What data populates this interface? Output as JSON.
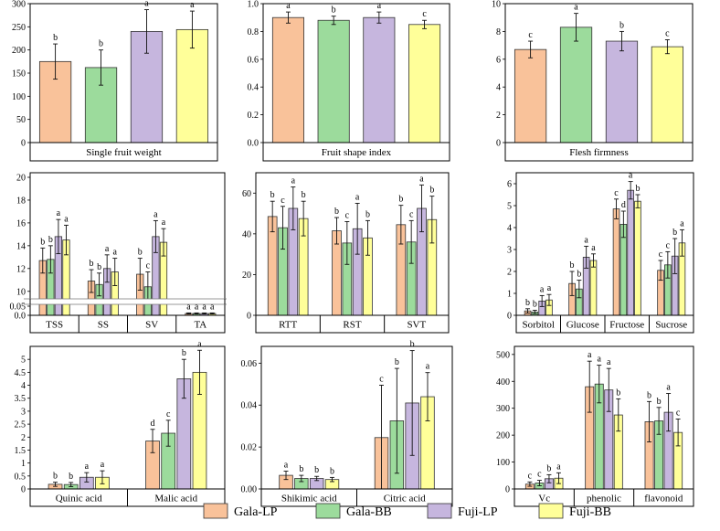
{
  "legend": [
    {
      "name": "Gala-LP",
      "color": "#F9C29A"
    },
    {
      "name": "Gala-BB",
      "color": "#9CDB9C"
    },
    {
      "name": "Fuji-LP",
      "color": "#C6B6DE"
    },
    {
      "name": "Fuji-BB",
      "color": "#FFFF99"
    }
  ],
  "chart_data": [
    {
      "type": "bar",
      "title": "Single fruit weight",
      "ylim": [
        0,
        300
      ],
      "yticks": [
        0,
        50,
        100,
        150,
        200,
        250,
        300
      ],
      "yticklabels": [
        "0",
        "50",
        "100",
        "150",
        "200",
        "250",
        "300"
      ],
      "categories": [
        "Single fruit weight"
      ],
      "category_labels": [
        "Single fruit weight"
      ],
      "series": [
        {
          "name": "Gala-LP",
          "values": [
            175
          ],
          "errors": [
            38
          ],
          "letters": [
            "b"
          ]
        },
        {
          "name": "Gala-BB",
          "values": [
            162
          ],
          "errors": [
            38
          ],
          "letters": [
            "b"
          ]
        },
        {
          "name": "Fuji-LP",
          "values": [
            240
          ],
          "errors": [
            47
          ],
          "letters": [
            "a"
          ]
        },
        {
          "name": "Fuji-BB",
          "values": [
            244
          ],
          "errors": [
            40
          ],
          "letters": [
            "a"
          ]
        }
      ]
    },
    {
      "type": "bar",
      "title": "Fruit shape index",
      "ylim": [
        0,
        1.0
      ],
      "yticks": [
        0,
        0.2,
        0.4,
        0.6,
        0.8,
        1.0
      ],
      "yticklabels": [
        "0.0",
        "0.2",
        "0.4",
        "0.6",
        "0.8",
        "1.0"
      ],
      "categories": [
        "Fruit shape index"
      ],
      "category_labels": [
        "Fruit shape index"
      ],
      "series": [
        {
          "name": "Gala-LP",
          "values": [
            0.9
          ],
          "errors": [
            0.04
          ],
          "letters": [
            "a"
          ]
        },
        {
          "name": "Gala-BB",
          "values": [
            0.88
          ],
          "errors": [
            0.03
          ],
          "letters": [
            "b"
          ]
        },
        {
          "name": "Fuji-LP",
          "values": [
            0.9
          ],
          "errors": [
            0.04
          ],
          "letters": [
            "a"
          ]
        },
        {
          "name": "Fuji-BB",
          "values": [
            0.85
          ],
          "errors": [
            0.03
          ],
          "letters": [
            "c"
          ]
        }
      ]
    },
    {
      "type": "bar",
      "title": "Flesh firmness",
      "ylim": [
        0,
        10
      ],
      "yticks": [
        0,
        2,
        4,
        6,
        8,
        10
      ],
      "yticklabels": [
        "0",
        "2",
        "4",
        "6",
        "8",
        "10"
      ],
      "categories": [
        "Flesh firmness"
      ],
      "category_labels": [
        "Flesh firmness"
      ],
      "series": [
        {
          "name": "Gala-LP",
          "values": [
            6.7
          ],
          "errors": [
            0.6
          ],
          "letters": [
            "c"
          ]
        },
        {
          "name": "Gala-BB",
          "values": [
            8.3
          ],
          "errors": [
            1.0
          ],
          "letters": [
            "a"
          ]
        },
        {
          "name": "Fuji-LP",
          "values": [
            7.3
          ],
          "errors": [
            0.7
          ],
          "letters": [
            "b"
          ]
        },
        {
          "name": "Fuji-BB",
          "values": [
            6.9
          ],
          "errors": [
            0.5
          ],
          "letters": [
            "c"
          ]
        }
      ]
    },
    {
      "type": "bar",
      "title": "",
      "axis_break": {
        "lower_max": 0.05,
        "upper_min": 9.5,
        "upper_max": 20
      },
      "yticks": [
        0,
        0.05,
        10,
        12,
        14,
        16,
        18,
        20
      ],
      "yticklabels": [
        "0.0",
        "0.05",
        "10",
        "12",
        "14",
        "16",
        "18",
        "20"
      ],
      "categories": [
        "TSS",
        "SS",
        "SV",
        "TA"
      ],
      "category_labels": [
        "TSS",
        "SS",
        "SV",
        "TA"
      ],
      "series": [
        {
          "name": "Gala-LP",
          "values": [
            12.7,
            10.9,
            11.5,
            0.01
          ],
          "errors": [
            1.1,
            1.0,
            1.4,
            0.003
          ],
          "letters": [
            "b",
            "b",
            "b",
            "a"
          ]
        },
        {
          "name": "Gala-BB",
          "values": [
            12.8,
            10.6,
            10.4,
            0.01
          ],
          "errors": [
            1.2,
            1.0,
            1.3,
            0.003
          ],
          "letters": [
            "b",
            "b",
            "c",
            "a"
          ]
        },
        {
          "name": "Fuji-LP",
          "values": [
            14.8,
            12.0,
            14.8,
            0.01
          ],
          "errors": [
            1.5,
            1.2,
            1.4,
            0.003
          ],
          "letters": [
            "a",
            "a",
            "a",
            "a"
          ]
        },
        {
          "name": "Fuji-BB",
          "values": [
            14.5,
            11.7,
            14.3,
            0.01
          ],
          "errors": [
            1.3,
            1.2,
            1.2,
            0.003
          ],
          "letters": [
            "a",
            "a",
            "a",
            "a"
          ]
        }
      ]
    },
    {
      "type": "bar",
      "title": "",
      "ylim": [
        0,
        70
      ],
      "yticks": [
        0,
        20,
        40,
        60
      ],
      "yticklabels": [
        "0",
        "20",
        "40",
        "60"
      ],
      "categories": [
        "RTT",
        "RST",
        "SVT"
      ],
      "category_labels": [
        "RTT",
        "RST",
        "SVT"
      ],
      "series": [
        {
          "name": "Gala-LP",
          "values": [
            48.5,
            41.5,
            44.5
          ],
          "errors": [
            7.5,
            6.5,
            9.5
          ],
          "letters": [
            "b",
            "b",
            "b"
          ]
        },
        {
          "name": "Gala-BB",
          "values": [
            43.0,
            35.5,
            36.0
          ],
          "errors": [
            10.5,
            10.5,
            10.5
          ],
          "letters": [
            "c",
            "c",
            "c"
          ]
        },
        {
          "name": "Fuji-LP",
          "values": [
            52.5,
            42.5,
            52.5
          ],
          "errors": [
            10.5,
            12.5,
            11.5
          ],
          "letters": [
            "a",
            "a",
            "a"
          ]
        },
        {
          "name": "Fuji-BB",
          "values": [
            47.5,
            38.0,
            47.0
          ],
          "errors": [
            8.5,
            8.5,
            11.5
          ],
          "letters": [
            "b",
            "b",
            "b"
          ]
        }
      ]
    },
    {
      "type": "bar",
      "title": "",
      "ylim": [
        0,
        6.5
      ],
      "yticks": [
        0,
        1,
        2,
        3,
        4,
        5,
        6
      ],
      "yticklabels": [
        "0",
        "1",
        "2",
        "3",
        "4",
        "5",
        "6"
      ],
      "categories": [
        "Sorbitol",
        "Glucose",
        "Fructose",
        "Sucrose"
      ],
      "category_labels": [
        "Sorbitol",
        "Glucose",
        "Fructose",
        "Sucrose"
      ],
      "series": [
        {
          "name": "Gala-LP",
          "values": [
            0.2,
            1.45,
            4.85,
            2.05
          ],
          "errors": [
            0.1,
            0.55,
            0.45,
            0.45
          ],
          "letters": [
            "b",
            "b",
            "c",
            "c"
          ]
        },
        {
          "name": "Gala-BB",
          "values": [
            0.15,
            1.2,
            4.15,
            2.3
          ],
          "errors": [
            0.08,
            0.4,
            0.6,
            0.6
          ],
          "letters": [
            "b",
            "b",
            "d",
            "c"
          ]
        },
        {
          "name": "Fuji-LP",
          "values": [
            0.65,
            2.65,
            5.7,
            2.7
          ],
          "errors": [
            0.25,
            0.5,
            0.4,
            0.8
          ],
          "letters": [
            "a",
            "a",
            "a",
            "b"
          ]
        },
        {
          "name": "Fuji-BB",
          "values": [
            0.7,
            2.5,
            5.2,
            3.3
          ],
          "errors": [
            0.25,
            0.3,
            0.3,
            0.6
          ],
          "letters": [
            "a",
            "a",
            "b",
            "a"
          ]
        }
      ]
    },
    {
      "type": "bar",
      "title": "",
      "ylim": [
        0,
        5.5
      ],
      "yticks": [
        0,
        0.5,
        1,
        1.5,
        2,
        2.5,
        3,
        3.5,
        4,
        4.5,
        5
      ],
      "yticklabels": [
        "0",
        "0.5",
        "1",
        "1.5",
        "2",
        "2.5",
        "3",
        "3.5",
        "4",
        "4.5",
        "5"
      ],
      "categories": [
        "Quinic acid",
        "Malic acid"
      ],
      "category_labels": [
        "Quinic acid",
        "Malic acid"
      ],
      "series": [
        {
          "name": "Gala-LP",
          "values": [
            0.18,
            1.85
          ],
          "errors": [
            0.08,
            0.45
          ],
          "letters": [
            "b",
            "d"
          ]
        },
        {
          "name": "Gala-BB",
          "values": [
            0.17,
            2.15
          ],
          "errors": [
            0.08,
            0.5
          ],
          "letters": [
            "b",
            "c"
          ]
        },
        {
          "name": "Fuji-LP",
          "values": [
            0.45,
            4.25
          ],
          "errors": [
            0.18,
            0.75
          ],
          "letters": [
            "a",
            "b"
          ]
        },
        {
          "name": "Fuji-BB",
          "values": [
            0.45,
            4.5
          ],
          "errors": [
            0.25,
            0.85
          ],
          "letters": [
            "a",
            "a"
          ]
        }
      ]
    },
    {
      "type": "bar",
      "title": "",
      "ylim": [
        0,
        0.068
      ],
      "yticks": [
        0,
        0.02,
        0.04,
        0.06
      ],
      "yticklabels": [
        "0.00",
        "0.02",
        "0.04",
        "0.06"
      ],
      "categories": [
        "Shikimic acid",
        "Citric acid"
      ],
      "category_labels": [
        "Shikimic acid",
        "Citric acid"
      ],
      "series": [
        {
          "name": "Gala-LP",
          "values": [
            0.0065,
            0.0245
          ],
          "errors": [
            0.002,
            0.025
          ],
          "letters": [
            "a",
            "c"
          ]
        },
        {
          "name": "Gala-BB",
          "values": [
            0.005,
            0.0325
          ],
          "errors": [
            0.0015,
            0.025
          ],
          "letters": [
            "b",
            "b"
          ]
        },
        {
          "name": "Fuji-LP",
          "values": [
            0.005,
            0.041
          ],
          "errors": [
            0.001,
            0.025
          ],
          "letters": [
            "b",
            "b"
          ]
        },
        {
          "name": "Fuji-BB",
          "values": [
            0.0045,
            0.044
          ],
          "errors": [
            0.001,
            0.0115
          ],
          "letters": [
            "b",
            "a"
          ]
        }
      ]
    },
    {
      "type": "bar",
      "title": "",
      "ylim": [
        0,
        530
      ],
      "yticks": [
        0,
        100,
        200,
        300,
        400,
        500
      ],
      "yticklabels": [
        "0",
        "100",
        "200",
        "300",
        "400",
        "500"
      ],
      "categories": [
        "Vc",
        "phenolic",
        "flavonoid"
      ],
      "category_labels": [
        "Vc",
        "phenolic",
        "flavonoid"
      ],
      "series": [
        {
          "name": "Gala-LP",
          "values": [
            18,
            380,
            250
          ],
          "errors": [
            8,
            95,
            75
          ],
          "letters": [
            "c",
            "a",
            "b"
          ]
        },
        {
          "name": "Gala-BB",
          "values": [
            22,
            390,
            253
          ],
          "errors": [
            10,
            70,
            50
          ],
          "letters": [
            "c",
            "a",
            "b"
          ]
        },
        {
          "name": "Fuji-LP",
          "values": [
            38,
            368,
            285
          ],
          "errors": [
            15,
            80,
            70
          ],
          "letters": [
            "b",
            "a",
            "a"
          ]
        },
        {
          "name": "Fuji-BB",
          "values": [
            40,
            275,
            210
          ],
          "errors": [
            20,
            60,
            50
          ],
          "letters": [
            "a",
            "b",
            "c"
          ]
        }
      ]
    }
  ]
}
